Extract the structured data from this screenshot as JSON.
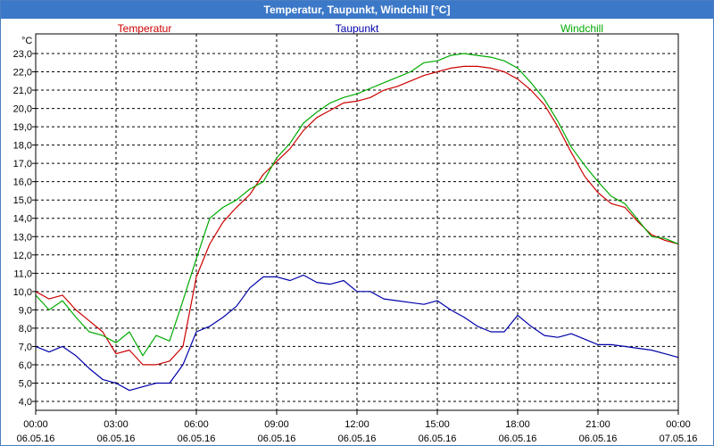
{
  "window": {
    "title": "Temperatur, Taupunkt, Windchill [°C]"
  },
  "colors": {
    "titlebar": "#3c78c8",
    "axis": "#000000",
    "grid": "#000000"
  },
  "chart_data": {
    "type": "line",
    "title": "Temperatur, Taupunkt, Windchill [°C]",
    "ylabel": "°C",
    "xlabel": "",
    "ylim": [
      4.0,
      23.0
    ],
    "xlim": [
      0,
      24
    ],
    "grid": true,
    "legend_position": "top",
    "ytick_labels": [
      "4,0",
      "5,0",
      "6,0",
      "7,0",
      "8,0",
      "9,0",
      "10,0",
      "11,0",
      "12,0",
      "13,0",
      "14,0",
      "15,0",
      "16,0",
      "17,0",
      "18,0",
      "19,0",
      "20,0",
      "21,0",
      "22,0",
      "23,0"
    ],
    "xticks": [
      {
        "time": "00:00",
        "date": "06.05.16"
      },
      {
        "time": "03:00",
        "date": "06.05.16"
      },
      {
        "time": "06:00",
        "date": "06.05.16"
      },
      {
        "time": "09:00",
        "date": "06.05.16"
      },
      {
        "time": "12:00",
        "date": "06.05.16"
      },
      {
        "time": "15:00",
        "date": "06.05.16"
      },
      {
        "time": "18:00",
        "date": "06.05.16"
      },
      {
        "time": "21:00",
        "date": "06.05.16"
      },
      {
        "time": "00:00",
        "date": "07.05.16"
      }
    ],
    "series": [
      {
        "name": "Temperatur",
        "color": "#cc0000",
        "x": [
          0,
          0.5,
          1,
          1.5,
          2,
          2.5,
          3,
          3.5,
          4,
          4.5,
          5,
          5.5,
          6,
          6.5,
          7,
          7.5,
          8,
          8.5,
          9,
          9.5,
          10,
          10.5,
          11,
          11.5,
          12,
          12.5,
          13,
          13.5,
          14,
          14.5,
          15,
          15.5,
          16,
          16.5,
          17,
          17.5,
          18,
          18.5,
          19,
          19.5,
          20,
          20.5,
          21,
          21.5,
          22,
          22.5,
          23,
          23.5,
          24
        ],
        "values": [
          10.0,
          9.6,
          9.8,
          9.0,
          8.4,
          7.8,
          6.6,
          6.8,
          6.0,
          6.0,
          6.2,
          7.0,
          10.8,
          12.6,
          13.8,
          14.6,
          15.3,
          16.4,
          17.1,
          17.8,
          18.8,
          19.5,
          19.9,
          20.3,
          20.4,
          20.6,
          21.0,
          21.2,
          21.5,
          21.8,
          22.0,
          22.2,
          22.3,
          22.3,
          22.2,
          22.0,
          21.6,
          21.0,
          20.2,
          19.0,
          17.6,
          16.3,
          15.4,
          14.8,
          14.6,
          13.8,
          13.1,
          12.8,
          12.6
        ]
      },
      {
        "name": "Taupunkt",
        "color": "#0000aa",
        "x": [
          0,
          0.5,
          1,
          1.5,
          2,
          2.5,
          3,
          3.5,
          4,
          4.5,
          5,
          5.5,
          6,
          6.5,
          7,
          7.5,
          8,
          8.5,
          9,
          9.5,
          10,
          10.5,
          11,
          11.5,
          12,
          12.5,
          13,
          13.5,
          14,
          14.5,
          15,
          15.5,
          16,
          16.5,
          17,
          17.5,
          18,
          18.5,
          19,
          19.5,
          20,
          20.5,
          21,
          21.5,
          22,
          22.5,
          23,
          23.5,
          24
        ],
        "values": [
          7.0,
          6.7,
          7.0,
          6.5,
          5.8,
          5.2,
          5.0,
          4.6,
          4.8,
          5.0,
          5.0,
          6.0,
          7.8,
          8.1,
          8.6,
          9.2,
          10.2,
          10.8,
          10.8,
          10.6,
          10.9,
          10.5,
          10.4,
          10.6,
          10.0,
          10.0,
          9.6,
          9.5,
          9.4,
          9.3,
          9.5,
          9.0,
          8.6,
          8.1,
          7.8,
          7.8,
          8.7,
          8.1,
          7.6,
          7.5,
          7.7,
          7.4,
          7.1,
          7.1,
          7.0,
          6.9,
          6.8,
          6.6,
          6.4
        ]
      },
      {
        "name": "Windchill",
        "color": "#00aa00",
        "x": [
          0,
          0.5,
          1,
          1.5,
          2,
          2.5,
          3,
          3.5,
          4,
          4.5,
          5,
          5.5,
          6,
          6.5,
          7,
          7.5,
          8,
          8.5,
          9,
          9.5,
          10,
          10.5,
          11,
          11.5,
          12,
          12.5,
          13,
          13.5,
          14,
          14.5,
          15,
          15.5,
          16,
          16.5,
          17,
          17.5,
          18,
          18.5,
          19,
          19.5,
          20,
          20.5,
          21,
          21.5,
          22,
          22.5,
          23,
          23.5,
          24
        ],
        "values": [
          9.8,
          9.0,
          9.5,
          8.6,
          7.8,
          7.6,
          7.2,
          7.8,
          6.5,
          7.6,
          7.3,
          9.5,
          11.8,
          14.0,
          14.6,
          15.0,
          15.6,
          16.0,
          17.3,
          18.1,
          19.2,
          19.8,
          20.3,
          20.6,
          20.8,
          21.1,
          21.4,
          21.7,
          22.0,
          22.5,
          22.6,
          22.9,
          23.0,
          22.9,
          22.8,
          22.6,
          22.2,
          21.4,
          20.5,
          19.3,
          17.9,
          16.9,
          16.0,
          15.2,
          14.8,
          13.9,
          13.0,
          12.9,
          12.6
        ]
      }
    ]
  }
}
